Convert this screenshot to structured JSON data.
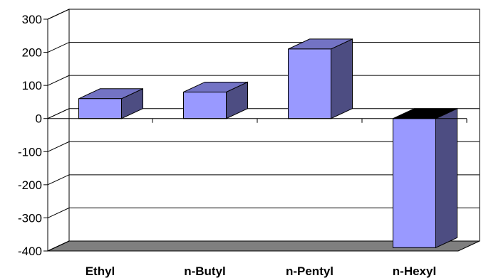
{
  "chart_data": {
    "type": "bar",
    "three_d": true,
    "categories": [
      "Ethyl",
      "n-Butyl",
      "n-Pentyl",
      "n-Hexyl"
    ],
    "values": [
      60,
      80,
      210,
      -390
    ],
    "ylim": [
      -400,
      300
    ],
    "yticks": [
      300,
      200,
      100,
      0,
      -100,
      -200,
      -300,
      -400
    ],
    "grid": true,
    "title": "",
    "xlabel": "",
    "ylabel": ""
  },
  "colors": {
    "bar_front": "#9999ff",
    "bar_side": "#4d4d82",
    "bar_top": "#7373c4",
    "floor": "#7f7f7f",
    "wall": "#ffffff",
    "grid": "#000000"
  }
}
